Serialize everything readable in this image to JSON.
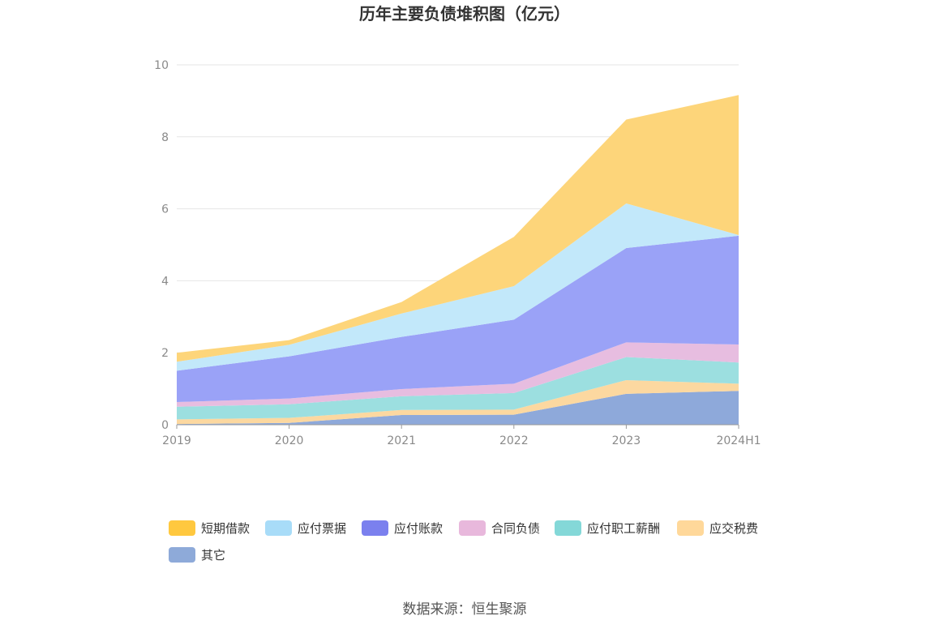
{
  "chart_data": {
    "type": "area",
    "stacked": true,
    "title": "历年主要负债堆积图（亿元）",
    "xlabel": "",
    "ylabel": "",
    "ylim": [
      0,
      10
    ],
    "yticks": [
      0,
      2,
      4,
      6,
      8,
      10
    ],
    "x": [
      "2019",
      "2020",
      "2021",
      "2022",
      "2023",
      "2024H1"
    ],
    "series": [
      {
        "name": "其它",
        "color": "#8ea9da",
        "legend_color": "#8eaad9",
        "values": [
          0.02,
          0.05,
          0.27,
          0.28,
          0.86,
          0.94
        ]
      },
      {
        "name": "应交税费",
        "color": "#fcd8a0",
        "legend_color": "#ffd89a",
        "values": [
          0.13,
          0.14,
          0.14,
          0.14,
          0.38,
          0.2
        ]
      },
      {
        "name": "应付职工薪酬",
        "color": "#9cdfe0",
        "legend_color": "#84d8d8",
        "values": [
          0.35,
          0.38,
          0.38,
          0.46,
          0.64,
          0.59
        ]
      },
      {
        "name": "合同负债",
        "color": "#e7bde0",
        "legend_color": "#e8b8dc",
        "values": [
          0.13,
          0.16,
          0.2,
          0.26,
          0.41,
          0.5
        ]
      },
      {
        "name": "应付账款",
        "color": "#9aa2f7",
        "legend_color": "#7b80ee",
        "values": [
          0.87,
          1.17,
          1.45,
          1.78,
          2.62,
          3.02
        ]
      },
      {
        "name": "应付票据",
        "color": "#c2e8fa",
        "legend_color": "#a8dcf8",
        "values": [
          0.25,
          0.32,
          0.65,
          0.93,
          1.24,
          0.02
        ]
      },
      {
        "name": "短期借款",
        "color": "#fdd57a",
        "legend_color": "#ffc83f",
        "values": [
          0.25,
          0.13,
          0.32,
          1.37,
          2.33,
          3.89
        ]
      }
    ],
    "legend_position": "bottom",
    "grid": true
  },
  "source_label": "数据来源：恒生聚源"
}
